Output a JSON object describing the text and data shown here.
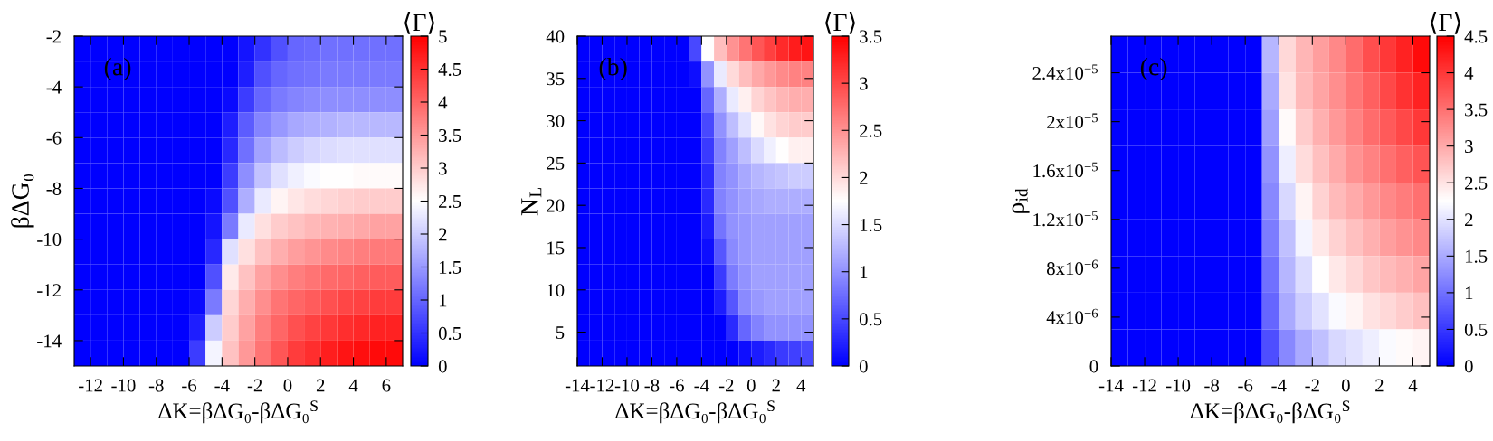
{
  "chart_data": [
    {
      "type": "heatmap",
      "xlabel": "ΔK=βΔG₀-βΔG₀$^{S}$",
      "ylabel": "βΔG₀",
      "clabel": "⟨Γ⟩",
      "annotations": [
        "(a)"
      ],
      "x": [
        -12.5,
        -11.5,
        -10.5,
        -9.5,
        -8.5,
        -7.5,
        -6.5,
        -5.5,
        -4.5,
        -3.5,
        -2.5,
        -1.5,
        -0.5,
        0.5,
        1.5,
        2.5,
        3.5,
        4.5,
        5.5,
        6.5
      ],
      "y": [
        -2.5,
        -3.5,
        -4.5,
        -5.5,
        -6.5,
        -7.5,
        -8.5,
        -9.5,
        -10.5,
        -11.5,
        -12.5,
        -13.5,
        -14.5
      ],
      "cells": [
        [
          0,
          0,
          0,
          0,
          0,
          0,
          0,
          0,
          0,
          0,
          0.2,
          0.5,
          0.8,
          1.0,
          1.05,
          1.1,
          1.1,
          1.1,
          1.1,
          1.1
        ],
        [
          0,
          0,
          0,
          0,
          0,
          0,
          0,
          0,
          0,
          0,
          0.3,
          0.8,
          1.0,
          1.1,
          1.15,
          1.2,
          1.2,
          1.2,
          1.2,
          1.2
        ],
        [
          0,
          0,
          0,
          0,
          0,
          0,
          0,
          0,
          0,
          0.1,
          0.6,
          1.0,
          1.2,
          1.3,
          1.35,
          1.4,
          1.4,
          1.4,
          1.4,
          1.4
        ],
        [
          0,
          0,
          0,
          0,
          0,
          0,
          0,
          0,
          0,
          0.3,
          0.9,
          1.3,
          1.5,
          1.65,
          1.7,
          1.75,
          1.8,
          1.8,
          1.8,
          1.8
        ],
        [
          0,
          0,
          0,
          0,
          0,
          0,
          0,
          0,
          0,
          0.4,
          1.1,
          1.6,
          1.85,
          2.0,
          2.1,
          2.15,
          2.2,
          2.2,
          2.2,
          2.2
        ],
        [
          0,
          0,
          0,
          0,
          0,
          0,
          0,
          0,
          0,
          0.6,
          1.4,
          1.9,
          2.2,
          2.35,
          2.45,
          2.5,
          2.5,
          2.55,
          2.55,
          2.55
        ],
        [
          0,
          0,
          0,
          0,
          0,
          0,
          0,
          0,
          0.1,
          0.8,
          1.7,
          2.3,
          2.6,
          2.75,
          2.85,
          2.9,
          2.95,
          3.0,
          3.0,
          3.0
        ],
        [
          0,
          0,
          0,
          0,
          0,
          0,
          0,
          0,
          0.2,
          1.2,
          2.3,
          2.8,
          3.0,
          3.1,
          3.2,
          3.25,
          3.3,
          3.35,
          3.4,
          3.4
        ],
        [
          0,
          0,
          0,
          0,
          0,
          0,
          0,
          0,
          0.4,
          2.2,
          2.8,
          3.1,
          3.3,
          3.45,
          3.55,
          3.65,
          3.7,
          3.75,
          3.8,
          3.8
        ],
        [
          0,
          0,
          0,
          0,
          0,
          0,
          0,
          0,
          0.8,
          2.7,
          3.1,
          3.4,
          3.6,
          3.75,
          3.85,
          3.95,
          4.0,
          4.05,
          4.1,
          4.1
        ],
        [
          0,
          0,
          0,
          0,
          0,
          0,
          0,
          0.1,
          1.2,
          2.9,
          3.3,
          3.6,
          3.85,
          4.0,
          4.1,
          4.2,
          4.3,
          4.35,
          4.4,
          4.4
        ],
        [
          0,
          0,
          0,
          0,
          0,
          0,
          0,
          0.3,
          2.0,
          3.0,
          3.4,
          3.75,
          4.0,
          4.2,
          4.35,
          4.45,
          4.55,
          4.6,
          4.65,
          4.65
        ],
        [
          0,
          0,
          0,
          0,
          0,
          0,
          0,
          0.6,
          2.4,
          3.1,
          3.5,
          3.85,
          4.15,
          4.4,
          4.55,
          4.7,
          4.8,
          4.85,
          4.9,
          4.9
        ]
      ],
      "xlim": [
        -13,
        7
      ],
      "ylim": [
        -15,
        -2
      ],
      "xticks": [
        -12,
        -10,
        -8,
        -6,
        -4,
        -2,
        0,
        2,
        4,
        6
      ],
      "yticks": [
        -14,
        -12,
        -10,
        -8,
        -6,
        -4,
        -2
      ],
      "clim": [
        0,
        5
      ],
      "cticks": [
        0,
        0.5,
        1,
        1.5,
        2,
        2.5,
        3,
        3.5,
        4,
        4.5,
        5
      ]
    },
    {
      "type": "heatmap",
      "xlabel": "ΔK=βΔG₀-βΔG₀$^{S}$",
      "ylabel": "N$_{L}$",
      "clabel": "⟨Γ⟩",
      "annotations": [
        "(b)"
      ],
      "x": [
        -13.5,
        -12.5,
        -11.5,
        -10.5,
        -9.5,
        -8.5,
        -7.5,
        -6.5,
        -5.5,
        -4.5,
        -3.5,
        -2.5,
        -1.5,
        -0.5,
        0.5,
        1.5,
        2.5,
        3.5,
        4.5
      ],
      "y": [
        38.5,
        35.5,
        32.5,
        29.5,
        26.5,
        23.5,
        20.5,
        17.5,
        14.5,
        11.5,
        8.5,
        5.5,
        2.5
      ],
      "cells": [
        [
          0,
          0,
          0,
          0,
          0,
          0,
          0,
          0,
          0,
          0.5,
          1.75,
          2.2,
          2.5,
          2.7,
          2.9,
          3.05,
          3.2,
          3.3,
          3.35
        ],
        [
          0,
          0,
          0,
          0,
          0,
          0,
          0,
          0,
          0,
          0.1,
          1.0,
          1.6,
          2.0,
          2.2,
          2.35,
          2.45,
          2.55,
          2.6,
          2.6
        ],
        [
          0,
          0,
          0,
          0,
          0,
          0,
          0,
          0,
          0,
          0,
          0.7,
          1.2,
          1.6,
          1.85,
          2.05,
          2.15,
          2.25,
          2.3,
          2.3
        ],
        [
          0,
          0,
          0,
          0,
          0,
          0,
          0,
          0,
          0,
          0,
          0.5,
          1.0,
          1.3,
          1.55,
          1.8,
          1.95,
          2.05,
          2.1,
          2.1
        ],
        [
          0,
          0,
          0,
          0,
          0,
          0,
          0,
          0,
          0,
          0,
          0.4,
          0.9,
          1.1,
          1.3,
          1.5,
          1.65,
          1.75,
          1.85,
          1.85
        ],
        [
          0,
          0,
          0,
          0,
          0,
          0,
          0,
          0,
          0,
          0,
          0.3,
          0.9,
          1.0,
          1.15,
          1.25,
          1.3,
          1.35,
          1.4,
          1.4
        ],
        [
          0,
          0,
          0,
          0,
          0,
          0,
          0,
          0,
          0,
          0,
          0.3,
          0.9,
          1.0,
          1.1,
          1.15,
          1.2,
          1.2,
          1.2,
          1.2
        ],
        [
          0,
          0,
          0,
          0,
          0,
          0,
          0,
          0,
          0,
          0,
          0.2,
          0.8,
          1.0,
          1.05,
          1.1,
          1.1,
          1.1,
          1.1,
          1.1
        ],
        [
          0,
          0,
          0,
          0,
          0,
          0,
          0,
          0,
          0,
          0,
          0.1,
          0.6,
          0.95,
          1.05,
          1.1,
          1.1,
          1.1,
          1.1,
          1.1
        ],
        [
          0,
          0,
          0,
          0,
          0,
          0,
          0,
          0,
          0,
          0,
          0,
          0.4,
          0.85,
          1.0,
          1.1,
          1.1,
          1.1,
          1.1,
          1.1
        ],
        [
          0,
          0,
          0,
          0,
          0,
          0,
          0,
          0,
          0,
          0,
          0,
          0.2,
          0.6,
          0.95,
          1.05,
          1.1,
          1.1,
          1.1,
          1.1
        ],
        [
          0,
          0,
          0,
          0,
          0,
          0,
          0,
          0,
          0,
          0,
          0,
          0,
          0.3,
          0.7,
          0.9,
          1.0,
          1.0,
          1.0,
          1.0
        ],
        [
          0,
          0,
          0,
          0,
          0,
          0,
          0,
          0,
          0,
          0,
          0,
          0,
          0,
          0.1,
          0.2,
          0.3,
          0.4,
          0.45,
          0.5
        ]
      ],
      "xlim": [
        -14,
        5
      ],
      "ylim": [
        1,
        40
      ],
      "xticks": [
        -14,
        -12,
        -10,
        -8,
        -6,
        -4,
        -2,
        0,
        2,
        4
      ],
      "yticks": [
        5,
        10,
        15,
        20,
        25,
        30,
        35,
        40
      ],
      "clim": [
        0,
        3.5
      ],
      "cticks": [
        0,
        0.5,
        1,
        1.5,
        2,
        2.5,
        3,
        3.5
      ]
    },
    {
      "type": "heatmap",
      "xlabel": "ΔK=βΔG₀-βΔG₀$^{S}$",
      "ylabel": "ρ$_{id}$",
      "clabel": "⟨Γ⟩",
      "annotations": [
        "(c)"
      ],
      "x": [
        -13.5,
        -12.5,
        -11.5,
        -10.5,
        -9.5,
        -8.5,
        -7.5,
        -6.5,
        -5.5,
        -4.5,
        -3.5,
        -2.5,
        -1.5,
        -0.5,
        0.5,
        1.5,
        2.5,
        3.5,
        4.5
      ],
      "y": [
        2.55e-05,
        2.25e-05,
        1.95e-05,
        1.65e-05,
        1.35e-05,
        1.05e-05,
        7.5e-06,
        4.5e-06,
        1.5e-06
      ],
      "cells": [
        [
          0,
          0,
          0,
          0,
          0,
          0,
          0,
          0,
          0,
          1.6,
          2.6,
          2.9,
          3.1,
          3.3,
          3.55,
          3.8,
          4.0,
          4.2,
          4.4
        ],
        [
          0,
          0,
          0,
          0,
          0,
          0,
          0,
          0,
          0,
          1.5,
          2.5,
          2.85,
          3.05,
          3.25,
          3.45,
          3.65,
          3.85,
          4.05,
          4.2
        ],
        [
          0,
          0,
          0,
          0,
          0,
          0,
          0,
          0,
          0,
          1.4,
          2.3,
          2.7,
          2.95,
          3.15,
          3.35,
          3.55,
          3.7,
          3.85,
          4.0
        ],
        [
          0,
          0,
          0,
          0,
          0,
          0,
          0,
          0,
          0,
          1.3,
          2.1,
          2.55,
          2.8,
          3.0,
          3.2,
          3.35,
          3.5,
          3.65,
          3.75
        ],
        [
          0,
          0,
          0,
          0,
          0,
          0,
          0,
          0,
          0,
          1.2,
          1.9,
          2.35,
          2.65,
          2.85,
          3.0,
          3.15,
          3.3,
          3.4,
          3.5
        ],
        [
          0,
          0,
          0,
          0,
          0,
          0,
          0,
          0,
          0,
          1.1,
          1.7,
          2.15,
          2.45,
          2.65,
          2.8,
          2.95,
          3.1,
          3.2,
          3.3
        ],
        [
          0,
          0,
          0,
          0,
          0,
          0,
          0,
          0,
          0,
          1.0,
          1.6,
          1.95,
          2.25,
          2.45,
          2.6,
          2.75,
          2.85,
          2.95,
          3.05
        ],
        [
          0,
          0,
          0,
          0,
          0,
          0,
          0,
          0,
          0,
          0.9,
          1.5,
          1.8,
          2.0,
          2.2,
          2.35,
          2.5,
          2.6,
          2.7,
          2.8
        ],
        [
          0,
          0,
          0,
          0,
          0,
          0,
          0,
          0,
          0,
          0.7,
          1.2,
          1.5,
          1.7,
          1.9,
          2.0,
          2.1,
          2.2,
          2.3,
          2.35
        ]
      ],
      "xlim": [
        -14,
        5
      ],
      "ylim": [
        0,
        2.7e-05
      ],
      "xticks": [
        -14,
        -12,
        -10,
        -8,
        -6,
        -4,
        -2,
        0,
        2,
        4
      ],
      "yticks": [
        0,
        {
          "value": 4e-06,
          "label": "4x10$^{−6}$"
        },
        {
          "value": 8e-06,
          "label": "8x10$^{−6}$"
        },
        {
          "value": 1.2e-05,
          "label": "1.2x10$^{−5}$"
        },
        {
          "value": 1.6e-05,
          "label": "1.6x10$^{−5}$"
        },
        {
          "value": 2e-05,
          "label": "2x10$^{−5}$"
        },
        {
          "value": 2.4e-05,
          "label": "2.4x10$^{−5}$"
        }
      ],
      "clim": [
        0,
        4.5
      ],
      "cticks": [
        0,
        0.5,
        1,
        1.5,
        2,
        2.5,
        3,
        3.5,
        4,
        4.5
      ]
    }
  ]
}
